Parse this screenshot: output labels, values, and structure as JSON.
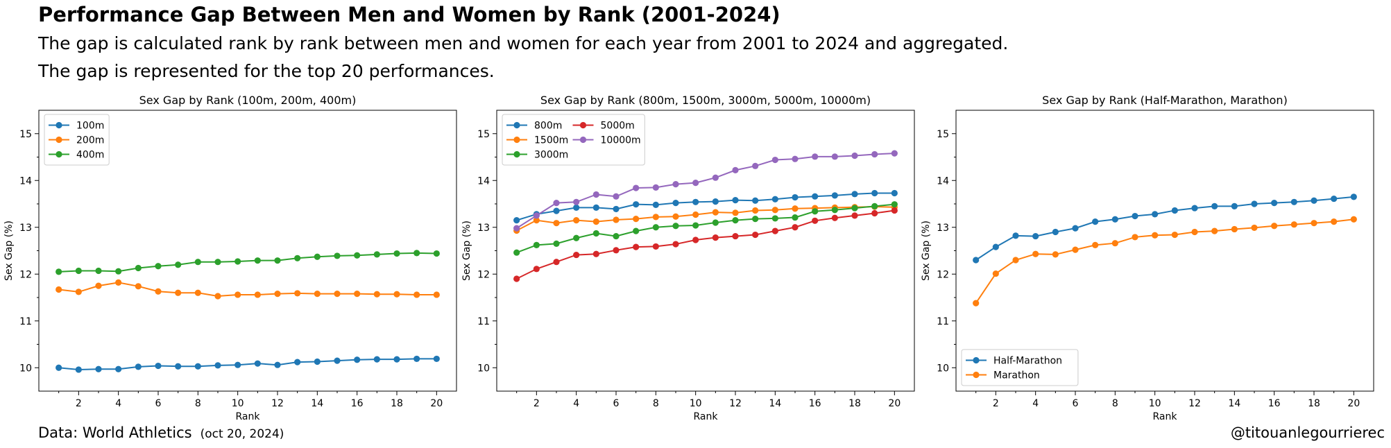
{
  "header": {
    "title": "Performance Gap Between Men and Women by Rank (2001-2024)",
    "subtitle_1": "The gap is calculated rank by rank between men and women for each year from 2001 to 2024 and aggregated.",
    "subtitle_2": "The gap is represented for the top 20 performances."
  },
  "footer": {
    "source": "Data: World Athletics",
    "source_date": "(oct 20, 2024)",
    "credit": "@titouanlegourrierec"
  },
  "colors": {
    "blue": "#1f77b4",
    "orange": "#ff7f0e",
    "green": "#2ca02c",
    "red": "#d62728",
    "purple": "#9467bd"
  },
  "chart_data": [
    {
      "type": "line",
      "title": "Sex Gap by Rank (100m, 200m, 400m)",
      "xlabel": "Rank",
      "ylabel": "Sex Gap (%)",
      "xlim": [
        0,
        21
      ],
      "ylim": [
        9.5,
        15.5
      ],
      "xticks": [
        2,
        4,
        6,
        8,
        10,
        12,
        14,
        16,
        18,
        20
      ],
      "yticks": [
        10,
        11,
        12,
        13,
        14,
        15
      ],
      "legend": {
        "position": "upper-left",
        "columns": 1
      },
      "x": [
        1,
        2,
        3,
        4,
        5,
        6,
        7,
        8,
        9,
        10,
        11,
        12,
        13,
        14,
        15,
        16,
        17,
        18,
        19,
        20
      ],
      "series": [
        {
          "name": "100m",
          "color": "#1f77b4",
          "values": [
            10.0,
            9.96,
            9.97,
            9.97,
            10.02,
            10.04,
            10.03,
            10.03,
            10.05,
            10.06,
            10.09,
            10.06,
            10.12,
            10.13,
            10.15,
            10.17,
            10.18,
            10.18,
            10.19,
            10.19
          ]
        },
        {
          "name": "200m",
          "color": "#ff7f0e",
          "values": [
            11.67,
            11.62,
            11.75,
            11.82,
            11.74,
            11.63,
            11.6,
            11.6,
            11.53,
            11.56,
            11.56,
            11.58,
            11.59,
            11.58,
            11.58,
            11.58,
            11.57,
            11.57,
            11.56,
            11.56
          ]
        },
        {
          "name": "400m",
          "color": "#2ca02c",
          "values": [
            12.05,
            12.07,
            12.07,
            12.06,
            12.13,
            12.17,
            12.2,
            12.26,
            12.26,
            12.27,
            12.29,
            12.29,
            12.34,
            12.37,
            12.39,
            12.4,
            12.42,
            12.44,
            12.45,
            12.44
          ]
        }
      ]
    },
    {
      "type": "line",
      "title": "Sex Gap by Rank (800m, 1500m, 3000m, 5000m, 10000m)",
      "xlabel": "Rank",
      "ylabel": "Sex Gap (%)",
      "xlim": [
        0,
        21
      ],
      "ylim": [
        9.5,
        15.5
      ],
      "xticks": [
        2,
        4,
        6,
        8,
        10,
        12,
        14,
        16,
        18,
        20
      ],
      "yticks": [
        10,
        11,
        12,
        13,
        14,
        15
      ],
      "legend": {
        "position": "upper-left",
        "columns": 2
      },
      "x": [
        1,
        2,
        3,
        4,
        5,
        6,
        7,
        8,
        9,
        10,
        11,
        12,
        13,
        14,
        15,
        16,
        17,
        18,
        19,
        20
      ],
      "series": [
        {
          "name": "800m",
          "color": "#1f77b4",
          "values": [
            13.15,
            13.28,
            13.35,
            13.42,
            13.42,
            13.39,
            13.49,
            13.48,
            13.52,
            13.54,
            13.55,
            13.58,
            13.57,
            13.6,
            13.64,
            13.66,
            13.68,
            13.71,
            13.73,
            13.73
          ]
        },
        {
          "name": "1500m",
          "color": "#ff7f0e",
          "values": [
            12.93,
            13.15,
            13.09,
            13.15,
            13.12,
            13.16,
            13.18,
            13.22,
            13.23,
            13.27,
            13.32,
            13.31,
            13.36,
            13.37,
            13.4,
            13.41,
            13.42,
            13.43,
            13.44,
            13.43
          ]
        },
        {
          "name": "3000m",
          "color": "#2ca02c",
          "values": [
            12.46,
            12.62,
            12.65,
            12.77,
            12.87,
            12.81,
            12.92,
            13.0,
            13.03,
            13.04,
            13.1,
            13.15,
            13.18,
            13.19,
            13.21,
            13.34,
            13.37,
            13.41,
            13.45,
            13.49
          ]
        },
        {
          "name": "5000m",
          "color": "#d62728",
          "values": [
            11.9,
            12.11,
            12.26,
            12.41,
            12.43,
            12.51,
            12.58,
            12.59,
            12.64,
            12.73,
            12.78,
            12.81,
            12.84,
            12.92,
            13.0,
            13.14,
            13.2,
            13.25,
            13.3,
            13.36
          ]
        },
        {
          "name": "10000m",
          "color": "#9467bd",
          "values": [
            12.98,
            13.25,
            13.52,
            13.54,
            13.7,
            13.66,
            13.84,
            13.85,
            13.92,
            13.95,
            14.06,
            14.22,
            14.31,
            14.44,
            14.46,
            14.51,
            14.51,
            14.53,
            14.56,
            14.58
          ]
        }
      ]
    },
    {
      "type": "line",
      "title": "Sex Gap by Rank (Half-Marathon, Marathon)",
      "xlabel": "Rank",
      "ylabel": "Sex Gap (%)",
      "xlim": [
        0,
        21
      ],
      "ylim": [
        9.5,
        15.5
      ],
      "xticks": [
        2,
        4,
        6,
        8,
        10,
        12,
        14,
        16,
        18,
        20
      ],
      "yticks": [
        10,
        11,
        12,
        13,
        14,
        15
      ],
      "legend": {
        "position": "lower-left",
        "columns": 1
      },
      "x": [
        1,
        2,
        3,
        4,
        5,
        6,
        7,
        8,
        9,
        10,
        11,
        12,
        13,
        14,
        15,
        16,
        17,
        18,
        19,
        20
      ],
      "series": [
        {
          "name": "Half-Marathon",
          "color": "#1f77b4",
          "values": [
            12.3,
            12.58,
            12.82,
            12.81,
            12.9,
            12.98,
            13.12,
            13.17,
            13.24,
            13.28,
            13.36,
            13.41,
            13.45,
            13.45,
            13.5,
            13.52,
            13.54,
            13.57,
            13.61,
            13.65
          ]
        },
        {
          "name": "Marathon",
          "color": "#ff7f0e",
          "values": [
            11.38,
            12.01,
            12.3,
            12.43,
            12.42,
            12.52,
            12.62,
            12.66,
            12.79,
            12.83,
            12.84,
            12.9,
            12.92,
            12.96,
            12.99,
            13.03,
            13.06,
            13.09,
            13.12,
            13.17
          ]
        }
      ]
    }
  ]
}
